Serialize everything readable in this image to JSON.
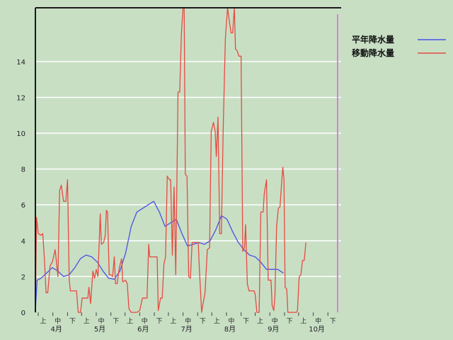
{
  "chart_data": {
    "type": "line",
    "ylim": [
      0,
      17
    ],
    "y_ticks": [
      0,
      2,
      4,
      6,
      8,
      10,
      12,
      14
    ],
    "grid": "horizontal",
    "legend_position": "top-right",
    "x_range": [
      0,
      54
    ],
    "months": [
      "4月",
      "5月",
      "6月",
      "7月",
      "8月",
      "9月",
      "10月"
    ],
    "decade_labels": [
      "上",
      "中",
      "下"
    ],
    "series": [
      {
        "name": "平年降水量",
        "color": "#4a52e6",
        "points": [
          [
            0,
            0.1
          ],
          [
            0.3,
            1.8
          ],
          [
            1,
            1.9
          ],
          [
            2,
            2.2
          ],
          [
            3,
            2.5
          ],
          [
            4,
            2.3
          ],
          [
            5,
            2.0
          ],
          [
            6,
            2.1
          ],
          [
            7,
            2.5
          ],
          [
            8,
            3.0
          ],
          [
            9,
            3.2
          ],
          [
            10,
            3.1
          ],
          [
            11,
            2.8
          ],
          [
            12,
            2.3
          ],
          [
            13,
            1.9
          ],
          [
            14,
            1.85
          ],
          [
            15,
            2.3
          ],
          [
            16,
            3.3
          ],
          [
            17,
            4.8
          ],
          [
            18,
            5.6
          ],
          [
            19,
            5.8
          ],
          [
            20,
            6.0
          ],
          [
            21,
            6.2
          ],
          [
            22,
            5.6
          ],
          [
            23,
            4.8
          ],
          [
            24,
            5.0
          ],
          [
            25,
            5.2
          ],
          [
            26,
            4.4
          ],
          [
            27,
            3.7
          ],
          [
            28,
            3.8
          ],
          [
            29,
            3.9
          ],
          [
            30,
            3.8
          ],
          [
            31,
            4.0
          ],
          [
            32,
            4.6
          ],
          [
            33,
            5.4
          ],
          [
            34,
            5.2
          ],
          [
            35,
            4.5
          ],
          [
            36,
            3.9
          ],
          [
            37,
            3.5
          ],
          [
            38,
            3.2
          ],
          [
            39,
            3.1
          ],
          [
            40,
            2.8
          ],
          [
            41,
            2.4
          ],
          [
            42,
            2.4
          ],
          [
            43,
            2.4
          ],
          [
            44,
            2.2
          ]
        ]
      },
      {
        "name": "移動降水量",
        "color": "#e84a42",
        "points": [
          [
            0,
            0
          ],
          [
            0.2,
            5.3
          ],
          [
            0.5,
            4.4
          ],
          [
            1,
            4.3
          ],
          [
            1.3,
            4.4
          ],
          [
            1.6,
            3.0
          ],
          [
            1.9,
            1.1
          ],
          [
            2.2,
            1.1
          ],
          [
            2.6,
            2.6
          ],
          [
            3.0,
            2.8
          ],
          [
            3.5,
            3.5
          ],
          [
            4.0,
            2.0
          ],
          [
            4.3,
            6.8
          ],
          [
            4.6,
            7.1
          ],
          [
            5.0,
            6.2
          ],
          [
            5.4,
            6.2
          ],
          [
            5.7,
            7.4
          ],
          [
            6.0,
            1.8
          ],
          [
            6.2,
            1.2
          ],
          [
            7.0,
            1.2
          ],
          [
            7.3,
            1.2
          ],
          [
            7.6,
            0
          ],
          [
            8.0,
            0
          ],
          [
            8.3,
            0.8
          ],
          [
            9.0,
            0.8
          ],
          [
            9.3,
            0.8
          ],
          [
            9.5,
            1.4
          ],
          [
            9.8,
            0.5
          ],
          [
            10.2,
            2.3
          ],
          [
            10.5,
            1.9
          ],
          [
            10.8,
            2.4
          ],
          [
            11.1,
            2.0
          ],
          [
            11.5,
            5.5
          ],
          [
            11.7,
            3.8
          ],
          [
            12.1,
            3.9
          ],
          [
            12.4,
            4.3
          ],
          [
            12.6,
            5.7
          ],
          [
            12.8,
            5.6
          ],
          [
            13.1,
            2.1
          ],
          [
            13.4,
            2.1
          ],
          [
            13.7,
            2.0
          ],
          [
            14.0,
            3.1
          ],
          [
            14.2,
            1.6
          ],
          [
            14.5,
            1.6
          ],
          [
            14.9,
            2.5
          ],
          [
            15.3,
            3.0
          ],
          [
            15.5,
            1.7
          ],
          [
            16.0,
            1.8
          ],
          [
            16.3,
            1.6
          ],
          [
            16.6,
            0.2
          ],
          [
            17.0,
            0
          ],
          [
            18.0,
            0
          ],
          [
            18.5,
            0.1
          ],
          [
            19.0,
            0.8
          ],
          [
            19.5,
            0.8
          ],
          [
            19.8,
            0.8
          ],
          [
            20.1,
            3.8
          ],
          [
            20.3,
            3.1
          ],
          [
            21.0,
            3.1
          ],
          [
            21.6,
            3.1
          ],
          [
            21.8,
            0.1
          ],
          [
            22.2,
            0.8
          ],
          [
            22.5,
            0.8
          ],
          [
            22.8,
            2.7
          ],
          [
            23.1,
            3.1
          ],
          [
            23.4,
            7.6
          ],
          [
            23.8,
            7.4
          ],
          [
            24.0,
            7.4
          ],
          [
            24.3,
            3.2
          ],
          [
            24.6,
            7.0
          ],
          [
            24.9,
            2.1
          ],
          [
            25.3,
            12.3
          ],
          [
            25.6,
            12.3
          ],
          [
            25.9,
            15.5
          ],
          [
            26.2,
            17.0
          ],
          [
            26.4,
            17.0
          ],
          [
            26.6,
            7.7
          ],
          [
            26.9,
            7.6
          ],
          [
            27.2,
            2.0
          ],
          [
            27.5,
            1.9
          ],
          [
            27.8,
            3.9
          ],
          [
            28.0,
            3.9
          ],
          [
            28.6,
            3.9
          ],
          [
            28.9,
            3.9
          ],
          [
            29.1,
            2.4
          ],
          [
            29.5,
            0
          ],
          [
            29.7,
            0.4
          ],
          [
            30.1,
            1.1
          ],
          [
            30.5,
            3.5
          ],
          [
            30.9,
            3.6
          ],
          [
            31.2,
            10.1
          ],
          [
            31.6,
            10.6
          ],
          [
            31.9,
            10.1
          ],
          [
            32.1,
            8.7
          ],
          [
            32.4,
            10.9
          ],
          [
            32.7,
            4.4
          ],
          [
            33.0,
            4.4
          ],
          [
            33.3,
            10.0
          ],
          [
            33.7,
            15.3
          ],
          [
            34.1,
            17.0
          ],
          [
            34.4,
            16.3
          ],
          [
            34.7,
            15.6
          ],
          [
            35.0,
            15.6
          ],
          [
            35.3,
            17.0
          ],
          [
            35.5,
            14.7
          ],
          [
            35.8,
            14.6
          ],
          [
            36.1,
            14.3
          ],
          [
            36.5,
            14.3
          ],
          [
            36.8,
            3.4
          ],
          [
            37.1,
            3.6
          ],
          [
            37.3,
            4.9
          ],
          [
            37.6,
            1.6
          ],
          [
            37.9,
            1.2
          ],
          [
            38.5,
            1.2
          ],
          [
            38.8,
            1.2
          ],
          [
            39.0,
            1.0
          ],
          [
            39.3,
            0
          ],
          [
            39.7,
            0
          ],
          [
            40.0,
            5.6
          ],
          [
            40.4,
            5.6
          ],
          [
            40.6,
            6.6
          ],
          [
            41.0,
            7.4
          ],
          [
            41.3,
            1.8
          ],
          [
            41.8,
            1.8
          ],
          [
            42.0,
            0.4
          ],
          [
            42.3,
            0.1
          ],
          [
            42.5,
            0.9
          ],
          [
            42.8,
            4.8
          ],
          [
            43.1,
            5.8
          ],
          [
            43.4,
            5.9
          ],
          [
            43.7,
            7.3
          ],
          [
            43.9,
            8.1
          ],
          [
            44.1,
            7.4
          ],
          [
            44.3,
            1.4
          ],
          [
            44.6,
            1.3
          ],
          [
            44.8,
            0
          ],
          [
            45.3,
            0
          ],
          [
            46.3,
            0
          ],
          [
            46.5,
            0.1
          ],
          [
            46.8,
            2.0
          ],
          [
            47.1,
            2.1
          ],
          [
            47.4,
            2.9
          ],
          [
            47.7,
            2.9
          ],
          [
            48.0,
            3.9
          ]
        ]
      }
    ]
  }
}
